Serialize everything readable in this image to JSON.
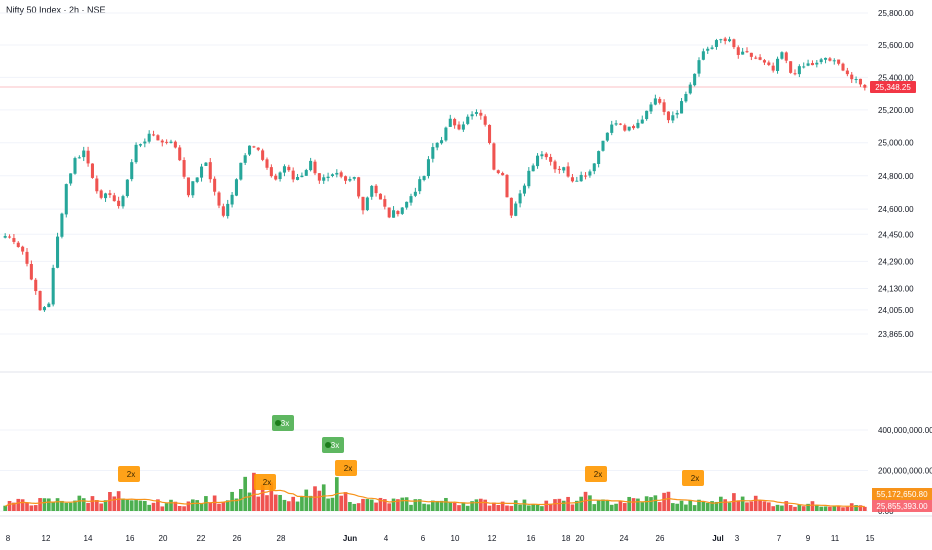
{
  "title": "Nifty 50 Index · 2h · NSE",
  "colors": {
    "up": "#26a69a",
    "down": "#ef5350",
    "vol_up": "#4caf50",
    "vol_down": "#ef5350",
    "ma": "#f7931a",
    "spike": "#ff9800",
    "spike_strong": "#4caf50",
    "last_price": "#f23645",
    "vol_ma_label": "#f7931a"
  },
  "last_price_label": "25,348.25",
  "volume_labels": {
    "ma": "55,172,650.80",
    "last": "25,855,393.00"
  },
  "chart_data": {
    "type": "candlestick",
    "price_axis": {
      "ticks": [
        25800,
        25600,
        25400,
        25200,
        25000,
        24800,
        24600,
        24450,
        24290,
        24130,
        24005,
        23865
      ],
      "tick_labels": [
        "25,800.00",
        "25,600.00",
        "25,400.00",
        "25,200.00",
        "25,000.00",
        "24,800.00",
        "24,600.00",
        "24,450.00",
        "24,290.00",
        "24,130.00",
        "24,005.00",
        "23,865.00"
      ],
      "scale": "log"
    },
    "volume_axis": {
      "ticks": [
        400000000,
        200000000,
        0
      ],
      "tick_labels": [
        "400,000,000.00",
        "200,000,000.00",
        "0.00"
      ]
    },
    "x_tick_labels": [
      "8",
      "12",
      "14",
      "16",
      "20",
      "22",
      "26",
      "28",
      "Jun",
      "4",
      "6",
      "10",
      "12",
      "16",
      "18",
      "20",
      "24",
      "26",
      "Jul",
      "3",
      "7",
      "9",
      "11",
      "15"
    ],
    "price_anchors": [
      [
        0,
        24440
      ],
      [
        2,
        24420
      ],
      [
        4,
        24350
      ],
      [
        6,
        24200
      ],
      [
        8,
        24000
      ],
      [
        10,
        24050
      ],
      [
        12,
        24430
      ],
      [
        14,
        24750
      ],
      [
        16,
        24900
      ],
      [
        18,
        24950
      ],
      [
        20,
        24800
      ],
      [
        22,
        24650
      ],
      [
        24,
        24700
      ],
      [
        26,
        24600
      ],
      [
        28,
        24780
      ],
      [
        30,
        24980
      ],
      [
        32,
        25020
      ],
      [
        34,
        25050
      ],
      [
        36,
        25000
      ],
      [
        38,
        25020
      ],
      [
        40,
        24900
      ],
      [
        42,
        24700
      ],
      [
        44,
        24800
      ],
      [
        46,
        24880
      ],
      [
        48,
        24700
      ],
      [
        50,
        24550
      ],
      [
        52,
        24700
      ],
      [
        54,
        24880
      ],
      [
        56,
        25000
      ],
      [
        58,
        24950
      ],
      [
        60,
        24830
      ],
      [
        62,
        24780
      ],
      [
        64,
        24860
      ],
      [
        66,
        24780
      ],
      [
        68,
        24810
      ],
      [
        70,
        24880
      ],
      [
        72,
        24780
      ],
      [
        74,
        24780
      ],
      [
        76,
        24800
      ],
      [
        78,
        24760
      ],
      [
        80,
        24790
      ],
      [
        82,
        24600
      ],
      [
        84,
        24750
      ],
      [
        86,
        24650
      ],
      [
        88,
        24560
      ],
      [
        90,
        24590
      ],
      [
        92,
        24640
      ],
      [
        94,
        24720
      ],
      [
        96,
        24800
      ],
      [
        98,
        24970
      ],
      [
        100,
        25030
      ],
      [
        102,
        25130
      ],
      [
        104,
        25100
      ],
      [
        106,
        25150
      ],
      [
        108,
        25180
      ],
      [
        110,
        25120
      ],
      [
        112,
        24850
      ],
      [
        114,
        24820
      ],
      [
        116,
        24560
      ],
      [
        118,
        24680
      ],
      [
        120,
        24830
      ],
      [
        122,
        24930
      ],
      [
        124,
        24930
      ],
      [
        126,
        24850
      ],
      [
        128,
        24840
      ],
      [
        130,
        24780
      ],
      [
        132,
        24800
      ],
      [
        134,
        24830
      ],
      [
        136,
        24950
      ],
      [
        138,
        25080
      ],
      [
        140,
        25120
      ],
      [
        142,
        25080
      ],
      [
        144,
        25080
      ],
      [
        146,
        25150
      ],
      [
        148,
        25250
      ],
      [
        150,
        25260
      ],
      [
        152,
        25150
      ],
      [
        154,
        25200
      ],
      [
        156,
        25300
      ],
      [
        158,
        25420
      ],
      [
        160,
        25560
      ],
      [
        162,
        25600
      ],
      [
        164,
        25630
      ],
      [
        166,
        25620
      ],
      [
        168,
        25540
      ],
      [
        170,
        25540
      ],
      [
        172,
        25520
      ],
      [
        174,
        25480
      ],
      [
        176,
        25440
      ],
      [
        178,
        25550
      ],
      [
        180,
        25430
      ],
      [
        182,
        25450
      ],
      [
        184,
        25480
      ],
      [
        186,
        25480
      ],
      [
        188,
        25520
      ],
      [
        190,
        25490
      ],
      [
        192,
        25460
      ],
      [
        194,
        25390
      ],
      [
        196,
        25350
      ]
    ],
    "volume_anchors": [
      [
        0,
        0.1
      ],
      [
        10,
        0.12
      ],
      [
        20,
        0.15
      ],
      [
        26,
        0.19
      ],
      [
        28,
        0.1
      ],
      [
        40,
        0.1
      ],
      [
        50,
        0.15
      ],
      [
        56,
        0.4
      ],
      [
        58,
        0.3
      ],
      [
        62,
        0.23
      ],
      [
        64,
        0.1
      ],
      [
        76,
        0.3
      ],
      [
        78,
        0.19
      ],
      [
        82,
        0.12
      ],
      [
        100,
        0.12
      ],
      [
        120,
        0.1
      ],
      [
        132,
        0.13
      ],
      [
        134,
        0.2
      ],
      [
        136,
        0.1
      ],
      [
        148,
        0.15
      ],
      [
        152,
        0.19
      ],
      [
        154,
        0.1
      ],
      [
        160,
        0.1
      ],
      [
        170,
        0.19
      ],
      [
        174,
        0.1
      ],
      [
        196,
        0.07
      ]
    ],
    "volume_spikes": [
      {
        "label": "2x",
        "type": "moderate"
      },
      {
        "label": "2x",
        "type": "moderate"
      },
      {
        "label": "3x",
        "type": "strong"
      },
      {
        "label": "3x",
        "type": "strong"
      },
      {
        "label": "2x",
        "type": "moderate"
      },
      {
        "label": "2x",
        "type": "moderate"
      },
      {
        "label": "2x",
        "type": "moderate"
      }
    ]
  }
}
